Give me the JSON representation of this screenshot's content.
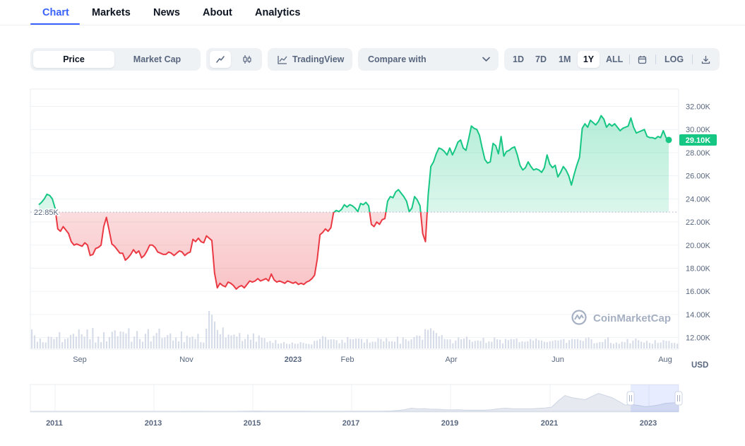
{
  "nav": {
    "tabs": [
      {
        "label": "Chart",
        "active": true
      },
      {
        "label": "Markets"
      },
      {
        "label": "News"
      },
      {
        "label": "About"
      },
      {
        "label": "Analytics"
      }
    ]
  },
  "toolbar": {
    "metric_tabs": [
      "Price",
      "Market Cap"
    ],
    "active_metric": "Price",
    "chart_styles": [
      "line-chart-icon",
      "candlestick-icon"
    ],
    "tradingview_label": "TradingView",
    "compare_label": "Compare with",
    "ranges": [
      "1D",
      "7D",
      "1M",
      "1Y",
      "ALL"
    ],
    "active_range": "1Y",
    "log_label": "LOG",
    "icons": {
      "tradingview": "tradingview-icon",
      "compare": "chevron-down-icon",
      "calendar": "calendar-icon",
      "download": "download-icon"
    }
  },
  "colors": {
    "accent": "#3861fb",
    "up": "#16c784",
    "down": "#ea3943",
    "grid": "#eff2f5",
    "axis_text": "#58667e"
  },
  "watermark": "CoinMarketCap",
  "chart_data": {
    "type": "line",
    "x_labels": [
      "Sep",
      "Nov",
      "2023",
      "Feb",
      "Apr",
      "Jun",
      "Aug"
    ],
    "y_ticks": [
      12000,
      14000,
      16000,
      18000,
      20000,
      22000,
      24000,
      26000,
      28000,
      30000,
      32000
    ],
    "y_tick_labels": [
      "12.00K",
      "14.00K",
      "16.00K",
      "18.00K",
      "20.00K",
      "22.00K",
      "24.00K",
      "26.00K",
      "28.00K",
      "30.00K",
      "32.00K"
    ],
    "ylim": [
      11000,
      33500
    ],
    "ylabel": "USD",
    "baseline": {
      "value": 22850,
      "label": "22.85K"
    },
    "current": {
      "value": 29100,
      "label": "29.10K"
    },
    "series": [
      {
        "values": [
          23500,
          23700,
          24000,
          24400,
          24300,
          24000,
          23200,
          21400,
          21200,
          21600,
          21300,
          21000,
          20300,
          20000,
          20100,
          20000,
          19900,
          20200,
          20000,
          19100,
          19200,
          19700,
          19800,
          20000,
          21600,
          22400,
          21300,
          20100,
          19900,
          19600,
          19300,
          19300,
          18700,
          18900,
          19200,
          19600,
          19300,
          19500,
          18900,
          19100,
          19500,
          20000,
          20000,
          19800,
          19400,
          19300,
          19200,
          19200,
          19400,
          19300,
          19100,
          19300,
          19500,
          19400,
          19100,
          19300,
          19400,
          20500,
          20300,
          20600,
          20300,
          20200,
          20800,
          20600,
          20400,
          17600,
          16300,
          16700,
          16500,
          16400,
          16800,
          16700,
          16500,
          16200,
          16400,
          16500,
          16300,
          16600,
          16900,
          16800,
          16900,
          17100,
          16900,
          17000,
          17100,
          16900,
          17500,
          17000,
          16800,
          16900,
          16800,
          16700,
          16900,
          16800,
          16700,
          16800,
          16600,
          16700,
          16600,
          16800,
          16900,
          17100,
          17400,
          18800,
          20900,
          21100,
          21400,
          21200,
          21500,
          22800,
          23000,
          22900,
          23100,
          23500,
          23300,
          23500,
          23400,
          23200,
          22900,
          23600,
          23500,
          23700,
          23400,
          21800,
          21600,
          22000,
          21800,
          22200,
          22300,
          23800,
          24200,
          24100,
          24600,
          24800,
          24500,
          24200,
          23800,
          22900,
          23200,
          24200,
          23900,
          23400,
          21000,
          20300,
          24300,
          26800,
          27200,
          27900,
          28400,
          28300,
          28100,
          27800,
          28400,
          27800,
          28300,
          28900,
          29100,
          28400,
          28200,
          29200,
          30300,
          30100,
          30000,
          29500,
          28400,
          27400,
          27100,
          27200,
          28800,
          28600,
          27900,
          29400,
          27700,
          28100,
          28200,
          28400,
          28500,
          27800,
          26900,
          26500,
          26700,
          27200,
          26800,
          26500,
          26600,
          26500,
          26300,
          26700,
          27800,
          27000,
          26700,
          26900,
          25900,
          26300,
          26800,
          26500,
          26000,
          25200,
          26100,
          26900,
          27600,
          30100,
          30500,
          30200,
          30800,
          30600,
          30400,
          30700,
          31200,
          30900,
          30200,
          30500,
          30300,
          30500,
          30200,
          29900,
          30100,
          30200,
          30300,
          31000,
          30200,
          29700,
          29800,
          29900,
          30000,
          29400,
          29300,
          29300,
          29200,
          29400,
          29300,
          29900,
          29300,
          29100
        ]
      }
    ],
    "volume": [
      0.48,
      0.33,
      0.17,
      0.25,
      0.16,
      0.15,
      0.3,
      0.29,
      0.24,
      0.29,
      0.41,
      0.16,
      0.24,
      0.26,
      0.34,
      0.37,
      0.3,
      0.48,
      0.36,
      0.3,
      0.48,
      0.23,
      0.52,
      0.15,
      0.3,
      0.16,
      0.41,
      0.18,
      0.29,
      0.42,
      0.46,
      0.31,
      0.43,
      0.42,
      0.38,
      0.51,
      0.17,
      0.3,
      0.44,
      0.24,
      0.17,
      0.37,
      0.49,
      0.18,
      0.32,
      0.39,
      0.5,
      0.26,
      0.28,
      0.34,
      0.38,
      0.2,
      0.28,
      0.18,
      0.43,
      0.16,
      0.32,
      0.28,
      0.3,
      0.24,
      0.37,
      0.16,
      0.15,
      0.5,
      0.95,
      0.85,
      0.68,
      0.47,
      0.36,
      0.53,
      0.28,
      0.35,
      0.33,
      0.35,
      0.3,
      0.39,
      0.19,
      0.24,
      0.35,
      0.22,
      0.38,
      0.17,
      0.33,
      0.27,
      0.26,
      0.16,
      0.19,
      0.14,
      0.21,
      0.12,
      0.13,
      0.16,
      0.12,
      0.11,
      0.15,
      0.12,
      0.12,
      0.16,
      0.14,
      0.12,
      0.11,
      0.1,
      0.19,
      0.2,
      0.24,
      0.31,
      0.29,
      0.22,
      0.23,
      0.23,
      0.21,
      0.13,
      0.22,
      0.15,
      0.29,
      0.24,
      0.23,
      0.25,
      0.25,
      0.24,
      0.15,
      0.24,
      0.15,
      0.17,
      0.17,
      0.26,
      0.24,
      0.18,
      0.26,
      0.18,
      0.18,
      0.17,
      0.3,
      0.12,
      0.28,
      0.23,
      0.19,
      0.23,
      0.29,
      0.33,
      0.32,
      0.22,
      0.49,
      0.47,
      0.51,
      0.45,
      0.39,
      0.31,
      0.34,
      0.24,
      0.23,
      0.23,
      0.13,
      0.2,
      0.28,
      0.23,
      0.25,
      0.3,
      0.22,
      0.17,
      0.19,
      0.2,
      0.19,
      0.27,
      0.14,
      0.18,
      0.17,
      0.28,
      0.23,
      0.22,
      0.13,
      0.24,
      0.21,
      0.24,
      0.23,
      0.25,
      0.16,
      0.18,
      0.17,
      0.18,
      0.24,
      0.2,
      0.25,
      0.21,
      0.2,
      0.17,
      0.16,
      0.18,
      0.19,
      0.21,
      0.2,
      0.22,
      0.24,
      0.14,
      0.21,
      0.24,
      0.23,
      0.24,
      0.21,
      0.19,
      0.26,
      0.28,
      0.23,
      0.13,
      0.14,
      0.16,
      0.16,
      0.23,
      0.28,
      0.14,
      0.12,
      0.15,
      0.12,
      0.17,
      0.16,
      0.24,
      0.13,
      0.2,
      0.25,
      0.21,
      0.17,
      0.15,
      0.19,
      0.14,
      0.12,
      0.21,
      0.14,
      0.15,
      0.21,
      0.19,
      0.19,
      0.14,
      0.14,
      0.12
    ],
    "navigator": {
      "x_labels": [
        "2011",
        "2013",
        "2015",
        "2017",
        "2019",
        "2021",
        "2023"
      ],
      "values": [
        0,
        0,
        0,
        0,
        0,
        0,
        0,
        0,
        0,
        0,
        0,
        0,
        0,
        0,
        0,
        0,
        0,
        0,
        0,
        0,
        0,
        0.001,
        0.001,
        0.002,
        0.003,
        0.004,
        0.002,
        0.001,
        0.001,
        0.001,
        0.001,
        0.002,
        0.008,
        0.012,
        0.015,
        0.011,
        0.009,
        0.009,
        0.008,
        0.008,
        0.007,
        0.006,
        0.005,
        0.005,
        0.004,
        0.004,
        0.004,
        0.005,
        0.006,
        0.006,
        0.007,
        0.008,
        0.01,
        0.012,
        0.02,
        0.04,
        0.08,
        0.15,
        0.12,
        0.13,
        0.1,
        0.1,
        0.08,
        0.07,
        0.08,
        0.06,
        0.06,
        0.06,
        0.06,
        0.08,
        0.12,
        0.15,
        0.13,
        0.12,
        0.12,
        0.12,
        0.14,
        0.16,
        0.2,
        0.5,
        0.75,
        0.65,
        0.6,
        0.55,
        0.7,
        0.85,
        0.75,
        0.65,
        0.48,
        0.3,
        0.32,
        0.28,
        0.22,
        0.25,
        0.3,
        0.38,
        0.4,
        0.42
      ]
    }
  }
}
